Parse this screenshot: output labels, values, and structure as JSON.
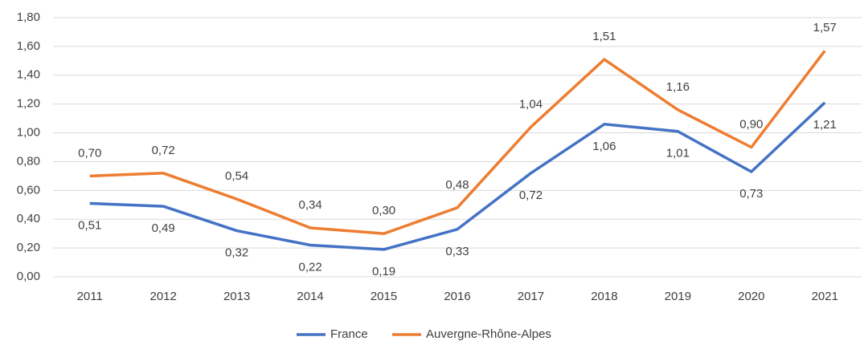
{
  "chart_data": {
    "type": "line",
    "categories": [
      "2011",
      "2012",
      "2013",
      "2014",
      "2015",
      "2016",
      "2017",
      "2018",
      "2019",
      "2020",
      "2021"
    ],
    "series": [
      {
        "name": "France",
        "color": "#4472c4",
        "values": [
          0.51,
          0.49,
          0.32,
          0.22,
          0.19,
          0.33,
          0.72,
          1.06,
          1.01,
          0.73,
          1.21
        ],
        "value_labels": [
          "0,51",
          "0,49",
          "0,32",
          "0,22",
          "0,19",
          "0,33",
          "0,72",
          "1,06",
          "1,01",
          "0,73",
          "1,21"
        ]
      },
      {
        "name": "Auvergne-Rhône-Alpes",
        "color": "#ed7d31",
        "values": [
          0.7,
          0.72,
          0.54,
          0.34,
          0.3,
          0.48,
          1.04,
          1.51,
          1.16,
          0.9,
          1.57
        ],
        "value_labels": [
          "0,70",
          "0,72",
          "0,54",
          "0,34",
          "0,30",
          "0,48",
          "1,04",
          "1,51",
          "1,16",
          "0,90",
          "1,57"
        ]
      }
    ],
    "ylim": [
      0,
      1.8
    ],
    "yticks": [
      {
        "value": 0,
        "label": "0,00"
      },
      {
        "value": 0.2,
        "label": "0,20"
      },
      {
        "value": 0.4,
        "label": "0,40"
      },
      {
        "value": 0.6,
        "label": "0,60"
      },
      {
        "value": 0.8,
        "label": "0,80"
      },
      {
        "value": 1.0,
        "label": "1,00"
      },
      {
        "value": 1.2,
        "label": "1,20"
      },
      {
        "value": 1.4,
        "label": "1,40"
      },
      {
        "value": 1.6,
        "label": "1,60"
      },
      {
        "value": 1.8,
        "label": "1,80"
      }
    ],
    "grid": true,
    "legend": "bottom"
  }
}
